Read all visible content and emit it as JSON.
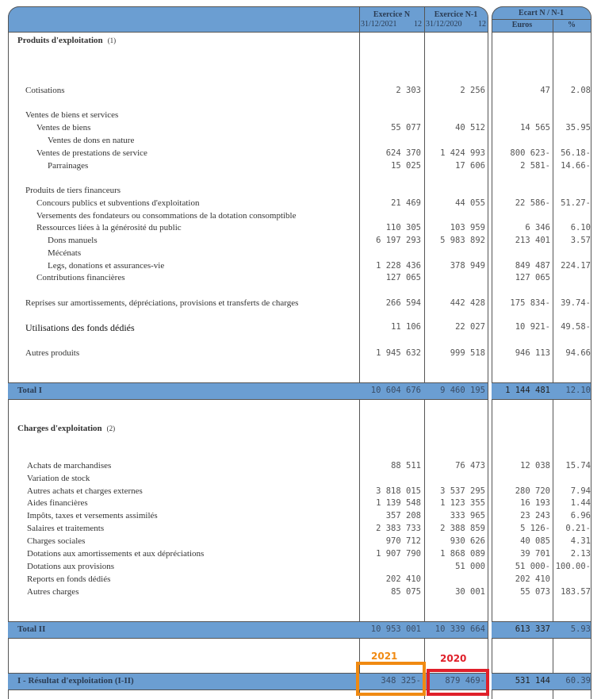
{
  "header": {
    "exercice_n": "Exercice N",
    "exercice_n_date": "31/12/2021",
    "exercice_n_months": "12",
    "exercice_n1": "Exercice N-1",
    "exercice_n1_date": "31/12/2020",
    "exercice_n1_months": "12",
    "ecart": "Ecart N / N-1",
    "euros": "Euros",
    "pct": "%"
  },
  "sections": {
    "produits_title": "Produits d'exploitation",
    "produits_note": "(1)",
    "charges_title": "Charges d'exploitation",
    "charges_note": "(2)"
  },
  "produits": [
    {
      "label": "Cotisations",
      "n": "2 303",
      "n1": "2 256",
      "ecart": "47",
      "pct": "2.08"
    },
    {
      "label": "Ventes de biens et services",
      "n": "",
      "n1": "",
      "ecart": "",
      "pct": ""
    },
    {
      "label": "Ventes de biens",
      "n": "55 077",
      "n1": "40 512",
      "ecart": "14 565",
      "pct": "35.95"
    },
    {
      "label": "Ventes de dons en nature",
      "n": "",
      "n1": "",
      "ecart": "",
      "pct": ""
    },
    {
      "label": "Ventes de prestations de service",
      "n": "624 370",
      "n1": "1 424 993",
      "ecart": "800 623-",
      "pct": "56.18-"
    },
    {
      "label": "Parrainages",
      "n": "15 025",
      "n1": "17 606",
      "ecart": "2 581-",
      "pct": "14.66-"
    },
    {
      "label": "Produits de tiers financeurs",
      "n": "",
      "n1": "",
      "ecart": "",
      "pct": ""
    },
    {
      "label": "Concours publics et subventions d'exploitation",
      "n": "21 469",
      "n1": "44 055",
      "ecart": "22 586-",
      "pct": "51.27-"
    },
    {
      "label": "Versements des fondateurs ou consommations de la dotation consomptible",
      "n": "",
      "n1": "",
      "ecart": "",
      "pct": ""
    },
    {
      "label": "Ressources liées à la générosité du public",
      "n": "110 305",
      "n1": "103 959",
      "ecart": "6 346",
      "pct": "6.10"
    },
    {
      "label": "Dons manuels",
      "n": "6 197 293",
      "n1": "5 983 892",
      "ecart": "213 401",
      "pct": "3.57"
    },
    {
      "label": "Mécénats",
      "n": "",
      "n1": "",
      "ecart": "",
      "pct": ""
    },
    {
      "label": "Legs, donations et assurances-vie",
      "n": "1 228 436",
      "n1": "378 949",
      "ecart": "849 487",
      "pct": "224.17"
    },
    {
      "label": "Contributions financières",
      "n": "127 065",
      "n1": "",
      "ecart": "127 065",
      "pct": ""
    },
    {
      "label": "Reprises sur amortissements, dépréciations, provisions et transferts de charges",
      "n": "266 594",
      "n1": "442 428",
      "ecart": "175 834-",
      "pct": "39.74-"
    },
    {
      "label": "Utilisations des fonds dédiés",
      "n": "11 106",
      "n1": "22 027",
      "ecart": "10 921-",
      "pct": "49.58-"
    },
    {
      "label": "Autres produits",
      "n": "1 945 632",
      "n1": "999 518",
      "ecart": "946 113",
      "pct": "94.66"
    }
  ],
  "total1": {
    "label": "Total I",
    "n": "10 604 676",
    "n1": "9 460 195",
    "ecart": "1 144 481",
    "pct": "12.10"
  },
  "charges": [
    {
      "label": "Achats de marchandises",
      "n": "88 511",
      "n1": "76 473",
      "ecart": "12 038",
      "pct": "15.74"
    },
    {
      "label": "Variation de stock",
      "n": "",
      "n1": "",
      "ecart": "",
      "pct": ""
    },
    {
      "label": "Autres achats et charges externes",
      "n": "3 818 015",
      "n1": "3 537 295",
      "ecart": "280 720",
      "pct": "7.94"
    },
    {
      "label": "Aides financières",
      "n": "1 139 548",
      "n1": "1 123 355",
      "ecart": "16 193",
      "pct": "1.44"
    },
    {
      "label": "Impôts, taxes et versements assimilés",
      "n": "357 208",
      "n1": "333 965",
      "ecart": "23 243",
      "pct": "6.96"
    },
    {
      "label": "Salaires et traitements",
      "n": "2 383 733",
      "n1": "2 388 859",
      "ecart": "5 126-",
      "pct": "0.21-"
    },
    {
      "label": "Charges sociales",
      "n": "970 712",
      "n1": "930 626",
      "ecart": "40 085",
      "pct": "4.31"
    },
    {
      "label": "Dotations aux amortissements et aux dépréciations",
      "n": "1 907 790",
      "n1": "1 868 089",
      "ecart": "39 701",
      "pct": "2.13"
    },
    {
      "label": "Dotations aux provisions",
      "n": "",
      "n1": "51 000",
      "ecart": "51 000-",
      "pct": "100.00-"
    },
    {
      "label": "Reports en fonds dédiés",
      "n": "202 410",
      "n1": "",
      "ecart": "202 410",
      "pct": ""
    },
    {
      "label": "Autres charges",
      "n": "85 075",
      "n1": "30 001",
      "ecart": "55 073",
      "pct": "183.57"
    }
  ],
  "total2": {
    "label": "Total II",
    "n": "10 953 001",
    "n1": "10 339 664",
    "ecart": "613 337",
    "pct": "5.93"
  },
  "resultat": {
    "label": "I - Résultat d'exploitation (I-II)",
    "n": "348 325-",
    "n1": "879 469-",
    "ecart": "531 144",
    "pct": "60.39"
  },
  "annotations": {
    "year_2021": "2021",
    "year_2021_color": "#f08a12",
    "year_2020": "2020",
    "year_2020_color": "#e0202a"
  },
  "colors": {
    "header_band": "#6b9ed2"
  }
}
